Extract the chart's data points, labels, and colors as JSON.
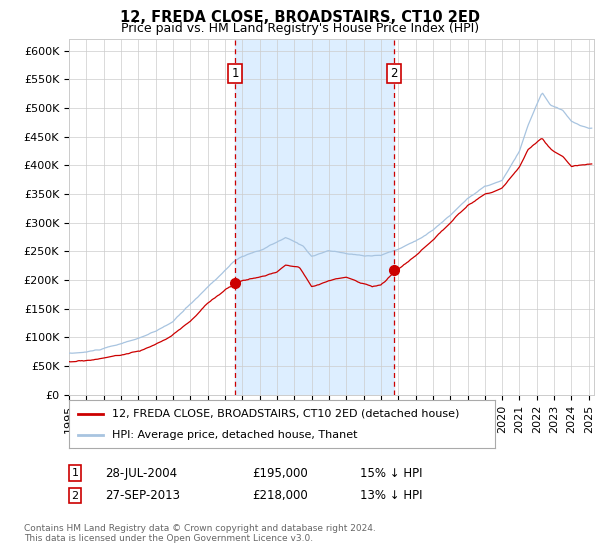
{
  "title": "12, FREDA CLOSE, BROADSTAIRS, CT10 2ED",
  "subtitle": "Price paid vs. HM Land Registry's House Price Index (HPI)",
  "ylim": [
    0,
    620000
  ],
  "yticks": [
    0,
    50000,
    100000,
    150000,
    200000,
    250000,
    300000,
    350000,
    400000,
    450000,
    500000,
    550000,
    600000
  ],
  "ytick_labels": [
    "£0",
    "£50K",
    "£100K",
    "£150K",
    "£200K",
    "£250K",
    "£300K",
    "£350K",
    "£400K",
    "£450K",
    "£500K",
    "£550K",
    "£600K"
  ],
  "sale1_x": 2004.583,
  "sale1_y": 195000,
  "sale1_label": "28-JUL-2004",
  "sale1_price": "£195,000",
  "sale1_hpi": "15% ↓ HPI",
  "sale2_x": 2013.75,
  "sale2_y": 218000,
  "sale2_label": "27-SEP-2013",
  "sale2_price": "£218,000",
  "sale2_hpi": "13% ↓ HPI",
  "shade_start": 2004.583,
  "shade_end": 2013.75,
  "hpi_line_color": "#a8c4e0",
  "price_line_color": "#cc0000",
  "sale_dot_color": "#cc0000",
  "shade_color": "#ddeeff",
  "vline_color": "#cc0000",
  "legend1_label": "12, FREDA CLOSE, BROADSTAIRS, CT10 2ED (detached house)",
  "legend2_label": "HPI: Average price, detached house, Thanet",
  "footer": "Contains HM Land Registry data © Crown copyright and database right 2024.\nThis data is licensed under the Open Government Licence v3.0.",
  "bg_color": "#ffffff",
  "grid_color": "#cccccc",
  "title_fontsize": 10.5,
  "subtitle_fontsize": 9,
  "tick_fontsize": 8,
  "legend_fontsize": 8,
  "table_fontsize": 8.5,
  "footer_fontsize": 6.5,
  "xlim_start": 1995.0,
  "xlim_end": 2025.3
}
